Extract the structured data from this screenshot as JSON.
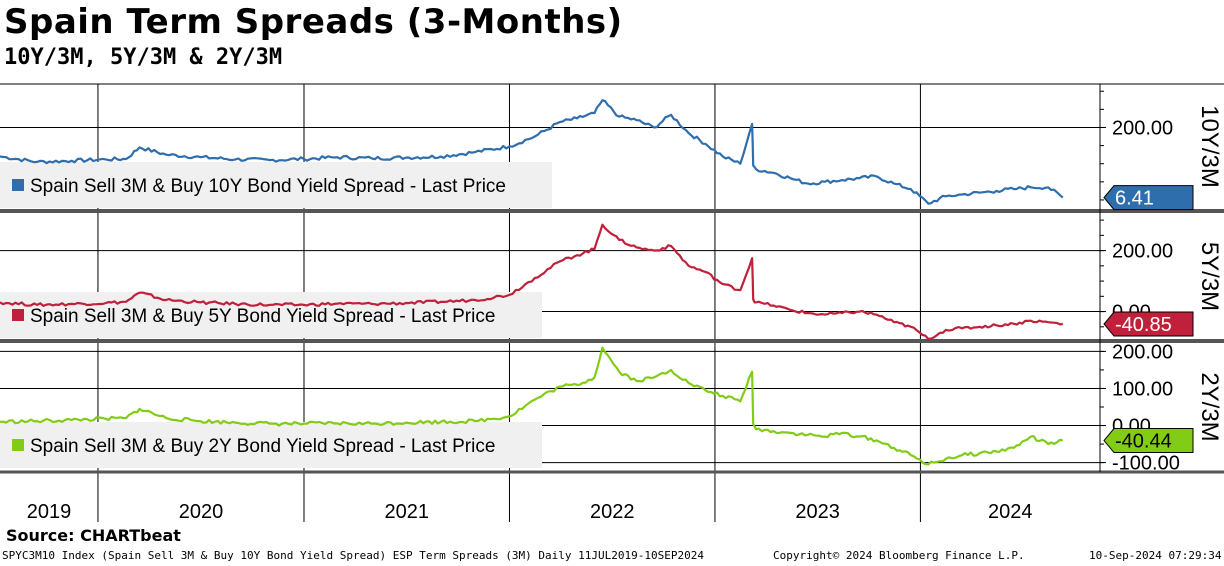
{
  "header": {
    "title": "Spain Term Spreads (3-Months)",
    "subtitle": "10Y/3M, 5Y/3M & 2Y/3M"
  },
  "source": "Source: CHARTbeat",
  "footer": {
    "left": "SPYC3M10 Index (Spain Sell 3M & Buy 10Y Bond Yield Spread) ESP Term Spreads (3M)  Daily 11JUL2019-10SEP2024",
    "center": "Copyright© 2024 Bloomberg Finance L.P.",
    "right": "10-Sep-2024 07:29:34"
  },
  "colors": {
    "ten_year": "#2f6ead",
    "five_year": "#c0203a",
    "two_year": "#82cc16",
    "grid": "#000000",
    "legend_bg": "#f0f0f0"
  },
  "chart_data": [
    {
      "type": "line",
      "panel_label": "10Y/3M",
      "legend": "Spain Sell 3M & Buy 10Y Bond Yield Spread - Last Price",
      "last_value": "6.41",
      "y_ticks": [
        "200.00"
      ],
      "ylim": [
        -25,
        320
      ],
      "x": [
        "2019-07-11",
        "2019-09-15",
        "2019-11-15",
        "2020-01-15",
        "2020-02-20",
        "2020-03-15",
        "2020-05-01",
        "2020-07-01",
        "2020-09-01",
        "2020-11-01",
        "2021-01-01",
        "2021-03-01",
        "2021-05-01",
        "2021-07-01",
        "2021-09-01",
        "2021-11-01",
        "2022-01-01",
        "2022-02-15",
        "2022-04-01",
        "2022-05-01",
        "2022-06-01",
        "2022-06-15",
        "2022-07-15",
        "2022-08-15",
        "2022-09-15",
        "2022-10-15",
        "2022-11-15",
        "2022-12-15",
        "2023-01-15",
        "2023-02-15",
        "2023-03-08",
        "2023-03-10",
        "2023-03-15",
        "2023-04-15",
        "2023-05-15",
        "2023-06-15",
        "2023-07-15",
        "2023-08-15",
        "2023-09-15",
        "2023-10-15",
        "2023-11-15",
        "2023-12-15",
        "2024-01-15",
        "2024-02-15",
        "2024-03-15",
        "2024-04-15",
        "2024-05-15",
        "2024-06-15",
        "2024-07-15",
        "2024-08-15",
        "2024-09-10"
      ],
      "values": [
        120,
        105,
        108,
        112,
        113,
        145,
        125,
        118,
        112,
        110,
        113,
        118,
        115,
        117,
        120,
        132,
        148,
        175,
        215,
        225,
        240,
        275,
        230,
        220,
        200,
        235,
        185,
        155,
        120,
        100,
        210,
        95,
        85,
        75,
        60,
        45,
        50,
        55,
        60,
        65,
        45,
        30,
        -10,
        10,
        15,
        20,
        25,
        30,
        35,
        35,
        6.41
      ]
    },
    {
      "type": "line",
      "panel_label": "5Y/3M",
      "legend": "Spain Sell 3M & Buy 5Y Bond Yield Spread - Last Price",
      "last_value": "-40.85",
      "y_ticks": [
        "200.00",
        "0.00"
      ],
      "ylim": [
        -90,
        320
      ],
      "x": [
        "2019-07-11",
        "2019-09-15",
        "2019-11-15",
        "2020-01-15",
        "2020-02-20",
        "2020-03-15",
        "2020-05-01",
        "2020-07-01",
        "2020-09-01",
        "2020-11-01",
        "2021-01-01",
        "2021-03-01",
        "2021-05-01",
        "2021-07-01",
        "2021-09-01",
        "2021-11-01",
        "2022-01-01",
        "2022-02-15",
        "2022-04-01",
        "2022-05-01",
        "2022-06-01",
        "2022-06-15",
        "2022-07-15",
        "2022-08-15",
        "2022-09-15",
        "2022-10-15",
        "2022-11-15",
        "2022-12-15",
        "2023-01-15",
        "2023-02-15",
        "2023-03-08",
        "2023-03-10",
        "2023-03-15",
        "2023-04-15",
        "2023-05-15",
        "2023-06-15",
        "2023-07-15",
        "2023-08-15",
        "2023-09-15",
        "2023-10-15",
        "2023-11-15",
        "2023-12-15",
        "2024-01-15",
        "2024-02-15",
        "2024-03-15",
        "2024-04-15",
        "2024-05-15",
        "2024-06-15",
        "2024-07-15",
        "2024-08-15",
        "2024-09-10"
      ],
      "values": [
        30,
        22,
        25,
        28,
        32,
        62,
        38,
        30,
        25,
        22,
        22,
        26,
        25,
        28,
        32,
        38,
        55,
        110,
        165,
        185,
        205,
        285,
        235,
        210,
        200,
        215,
        150,
        130,
        90,
        70,
        175,
        40,
        30,
        20,
        5,
        -5,
        -10,
        -5,
        0,
        -10,
        -35,
        -50,
        -90,
        -60,
        -55,
        -50,
        -45,
        -40,
        -30,
        -35,
        -40.85
      ]
    },
    {
      "type": "line",
      "panel_label": "2Y/3M",
      "legend": "Spain Sell 3M & Buy 2Y Bond Yield Spread - Last Price",
      "last_value": "-40.44",
      "y_ticks": [
        "200.00",
        "100.00",
        "0.00",
        "-100.00"
      ],
      "ylim": [
        -120,
        220
      ],
      "x": [
        "2019-07-11",
        "2019-09-15",
        "2019-11-15",
        "2020-01-15",
        "2020-02-20",
        "2020-03-15",
        "2020-05-01",
        "2020-07-01",
        "2020-09-01",
        "2020-11-01",
        "2021-01-01",
        "2021-03-01",
        "2021-05-01",
        "2021-07-01",
        "2021-09-01",
        "2021-11-01",
        "2022-01-01",
        "2022-02-15",
        "2022-04-01",
        "2022-05-01",
        "2022-06-01",
        "2022-06-15",
        "2022-07-15",
        "2022-08-15",
        "2022-09-15",
        "2022-10-15",
        "2022-11-15",
        "2022-12-15",
        "2023-01-15",
        "2023-02-15",
        "2023-03-08",
        "2023-03-10",
        "2023-03-15",
        "2023-04-15",
        "2023-05-15",
        "2023-06-15",
        "2023-07-15",
        "2023-08-15",
        "2023-09-15",
        "2023-10-15",
        "2023-11-15",
        "2023-12-15",
        "2024-01-15",
        "2024-02-15",
        "2024-03-15",
        "2024-04-15",
        "2024-05-15",
        "2024-06-15",
        "2024-07-15",
        "2024-08-15",
        "2024-09-10"
      ],
      "values": [
        10,
        12,
        15,
        18,
        20,
        45,
        20,
        12,
        8,
        5,
        5,
        6,
        5,
        8,
        10,
        12,
        25,
        70,
        105,
        110,
        130,
        210,
        145,
        120,
        130,
        150,
        115,
        95,
        80,
        65,
        145,
        5,
        -10,
        -15,
        -20,
        -25,
        -30,
        -20,
        -30,
        -40,
        -60,
        -80,
        -105,
        -90,
        -80,
        -75,
        -70,
        -60,
        -30,
        -50,
        -40.44
      ]
    }
  ],
  "x_axis": {
    "year_labels": [
      "2019",
      "2020",
      "2021",
      "2022",
      "2023",
      "2024"
    ]
  }
}
